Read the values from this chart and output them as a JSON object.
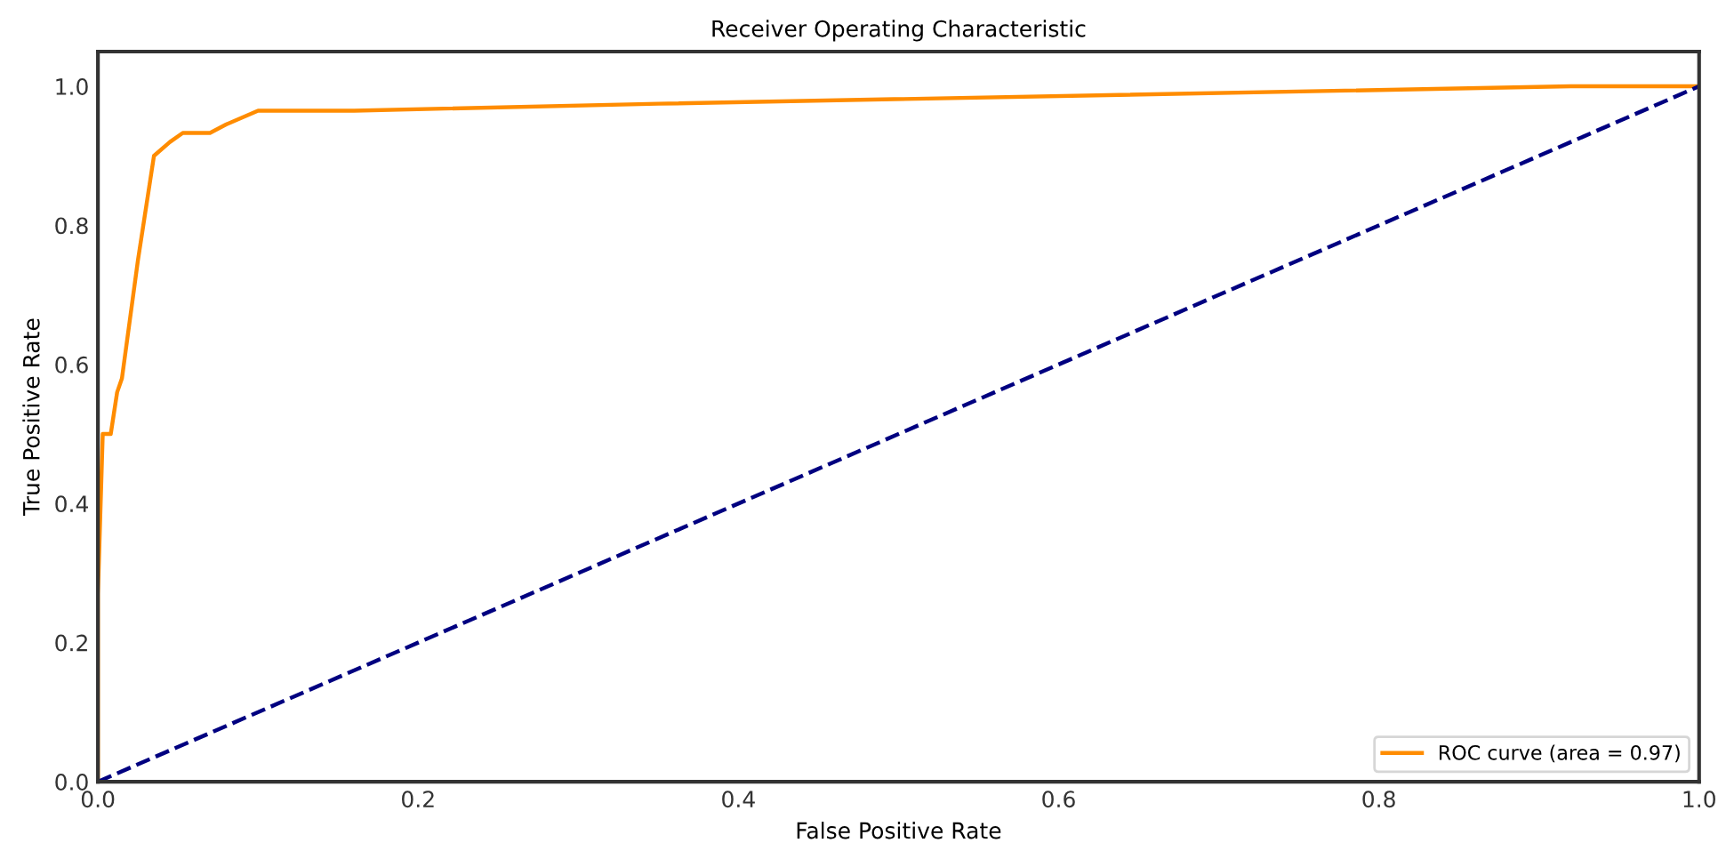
{
  "chart_data": {
    "type": "line",
    "title": "Receiver Operating Characteristic",
    "xlabel": "False Positive Rate",
    "ylabel": "True Positive Rate",
    "xlim": [
      0.0,
      1.0
    ],
    "ylim": [
      0.0,
      1.05
    ],
    "xticks": [
      {
        "value": 0,
        "label": "0.0"
      },
      0.2,
      0.4,
      0.6,
      0.8,
      {
        "value": 1,
        "label": "1.0"
      }
    ],
    "yticks": [
      {
        "value": 0,
        "label": "0.0"
      },
      0.2,
      0.4,
      0.6,
      0.8,
      {
        "value": 1,
        "label": "1.0"
      }
    ],
    "grid": false,
    "legend": "bottom right",
    "series": [
      {
        "name": "ROC curve (area = 0.97)",
        "color": "#ff8c00",
        "line_style": "solid",
        "x": [
          0,
          0,
          0.003,
          0.008,
          0.012,
          0.015,
          0.025,
          0.035,
          0.045,
          0.053,
          0.07,
          0.08,
          0.1,
          0.16,
          0.35,
          0.92,
          1
        ],
        "values": [
          0,
          0.27,
          0.5,
          0.5,
          0.56,
          0.58,
          0.75,
          0.9,
          0.92,
          0.933,
          0.933,
          0.945,
          0.965,
          0.965,
          0.975,
          1.0,
          1.0
        ]
      },
      {
        "color": "#000080",
        "line_style": "dashed",
        "x": [
          0,
          1
        ],
        "values": [
          0,
          1
        ]
      }
    ]
  }
}
